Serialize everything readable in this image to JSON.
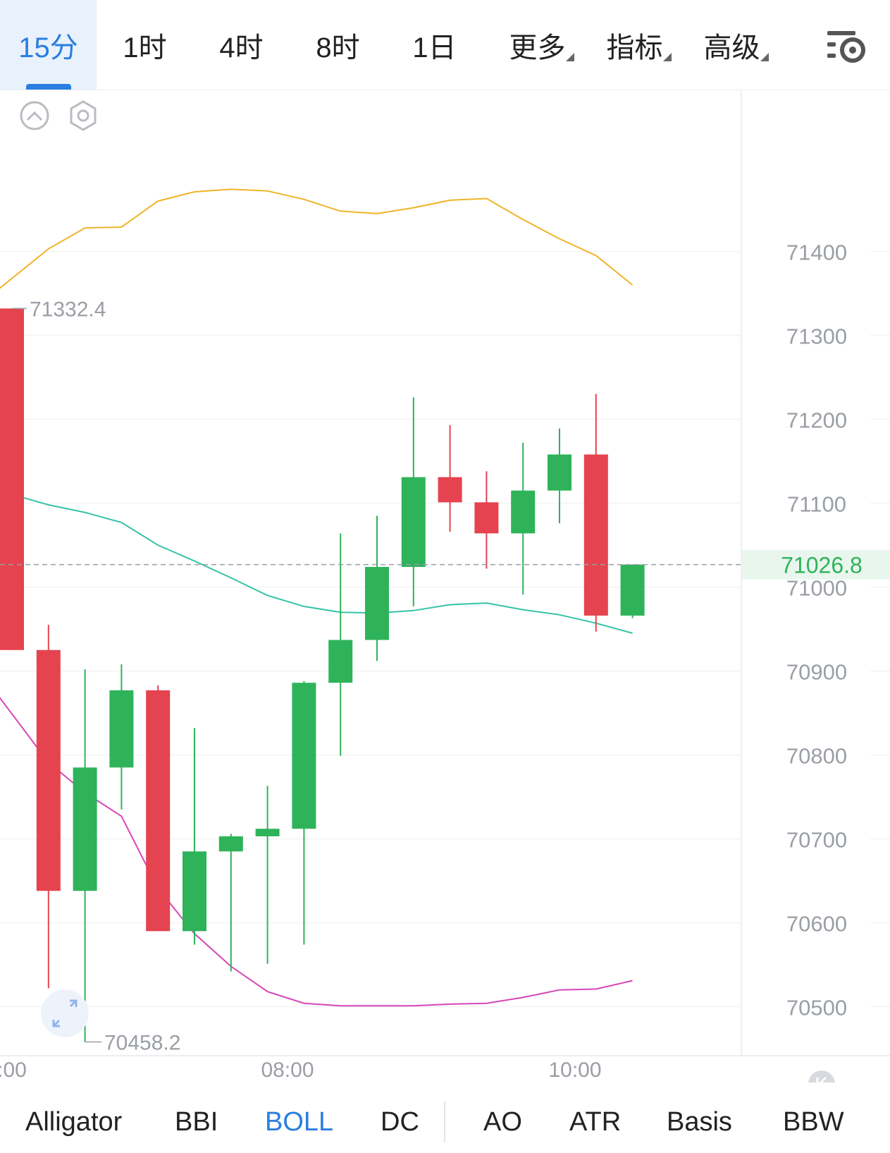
{
  "timeframe_tabs": [
    {
      "label": "15分",
      "active": true
    },
    {
      "label": "1时"
    },
    {
      "label": "4时"
    },
    {
      "label": "8时"
    },
    {
      "label": "1日"
    }
  ],
  "dropdowns": [
    "更多",
    "指标",
    "高级"
  ],
  "indicators": [
    "Alligator",
    "BBI",
    "BOLL",
    "DC",
    "AO",
    "ATR",
    "Basis",
    "BBW"
  ],
  "active_indicator": "BOLL",
  "colors": {
    "accent": "#2a7ee0",
    "up": "#2eb35a",
    "down": "#e5434f",
    "upper_band": "#f0b429",
    "middle_band": "#35c2a8",
    "lower_band": "#d646b8"
  },
  "chart_data": {
    "type": "candlestick",
    "y_axis_ticks": [
      71400,
      71300,
      71200,
      71100,
      71000,
      70900,
      70800,
      70700,
      70600,
      70500
    ],
    "x_axis_labels": [
      ":00",
      "08:00",
      "10:00"
    ],
    "current_price": "71026.8",
    "max_label": "71332.4",
    "min_label": "70458.2",
    "candles": [
      {
        "open": 71332,
        "high": 71332,
        "low": 70925,
        "close": 70925
      },
      {
        "open": 70925,
        "high": 70955,
        "low": 70522,
        "close": 70638
      },
      {
        "open": 70638,
        "high": 70902,
        "low": 70458,
        "close": 70785
      },
      {
        "open": 70785,
        "high": 70908,
        "low": 70735,
        "close": 70877
      },
      {
        "open": 70877,
        "high": 70883,
        "low": 70590,
        "close": 70590
      },
      {
        "open": 70590,
        "high": 70832,
        "low": 70574,
        "close": 70685
      },
      {
        "open": 70685,
        "high": 70706,
        "low": 70542,
        "close": 70703
      },
      {
        "open": 70703,
        "high": 70763,
        "low": 70551,
        "close": 70712
      },
      {
        "open": 70712,
        "high": 70888,
        "low": 70574,
        "close": 70886
      },
      {
        "open": 70886,
        "high": 71064,
        "low": 70799,
        "close": 70937
      },
      {
        "open": 70937,
        "high": 71085,
        "low": 70912,
        "close": 71024
      },
      {
        "open": 71024,
        "high": 71226,
        "low": 70977,
        "close": 71131
      },
      {
        "open": 71131,
        "high": 71193,
        "low": 71066,
        "close": 71101
      },
      {
        "open": 71101,
        "high": 71138,
        "low": 71022,
        "close": 71064
      },
      {
        "open": 71064,
        "high": 71172,
        "low": 70991,
        "close": 71115
      },
      {
        "open": 71115,
        "high": 71189,
        "low": 71076,
        "close": 71158
      },
      {
        "open": 71158,
        "high": 71230,
        "low": 70947,
        "close": 70966
      },
      {
        "open": 70966,
        "high": 71027,
        "low": 70963,
        "close": 71026.8
      }
    ],
    "series": [
      {
        "values": [
          71355,
          71403,
          71428,
          71429,
          71460,
          71471,
          71474,
          71472,
          71462,
          71448,
          71445,
          71452,
          71461,
          71463,
          71438,
          71415,
          71395,
          71360
        ]
      },
      {
        "values": [
          71115,
          71098,
          71089,
          71077,
          71050,
          71031,
          71011,
          70990,
          70977,
          70970,
          70969,
          70972,
          70979,
          70981,
          70973,
          70967,
          70957,
          70945
        ]
      },
      {
        "values": [
          70870,
          70791,
          70755,
          70727,
          70641,
          70587,
          70548,
          70518,
          70504,
          70501,
          70501,
          70501,
          70503,
          70504,
          70511,
          70520,
          70521,
          70531
        ]
      }
    ]
  }
}
